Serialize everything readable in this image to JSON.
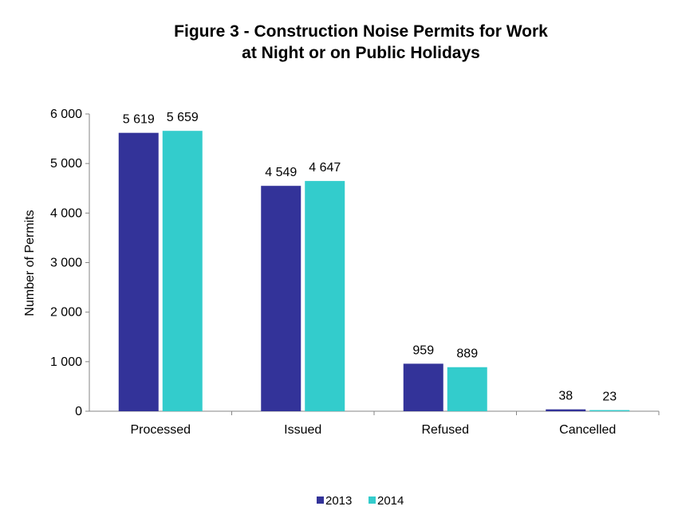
{
  "chart_data": {
    "type": "bar",
    "title": "Figure 3 - Construction Noise Permits for Work at Night or on Public Holidays",
    "title_lines": [
      "Figure 3 - Construction Noise Permits for Work",
      "at Night or on Public Holidays"
    ],
    "ylabel": "Number of Permits",
    "xlabel": "",
    "ylim": [
      0,
      6000
    ],
    "yticks": [
      0,
      1000,
      2000,
      3000,
      4000,
      5000,
      6000
    ],
    "ytick_labels": [
      "0",
      "1 000",
      "2 000",
      "3 000",
      "4 000",
      "5 000",
      "6 000"
    ],
    "categories": [
      "Processed",
      "Issued",
      "Refused",
      "Cancelled"
    ],
    "series": [
      {
        "name": "2013",
        "color": "#333399",
        "values": [
          5619,
          4549,
          959,
          38
        ],
        "labels": [
          "5 619",
          "4 549",
          "959",
          "38"
        ]
      },
      {
        "name": "2014",
        "color": "#33CCCC",
        "values": [
          5659,
          4647,
          889,
          23
        ],
        "labels": [
          "5 659",
          "4 647",
          "889",
          "23"
        ]
      }
    ],
    "grid": false,
    "legend": "bottom"
  }
}
